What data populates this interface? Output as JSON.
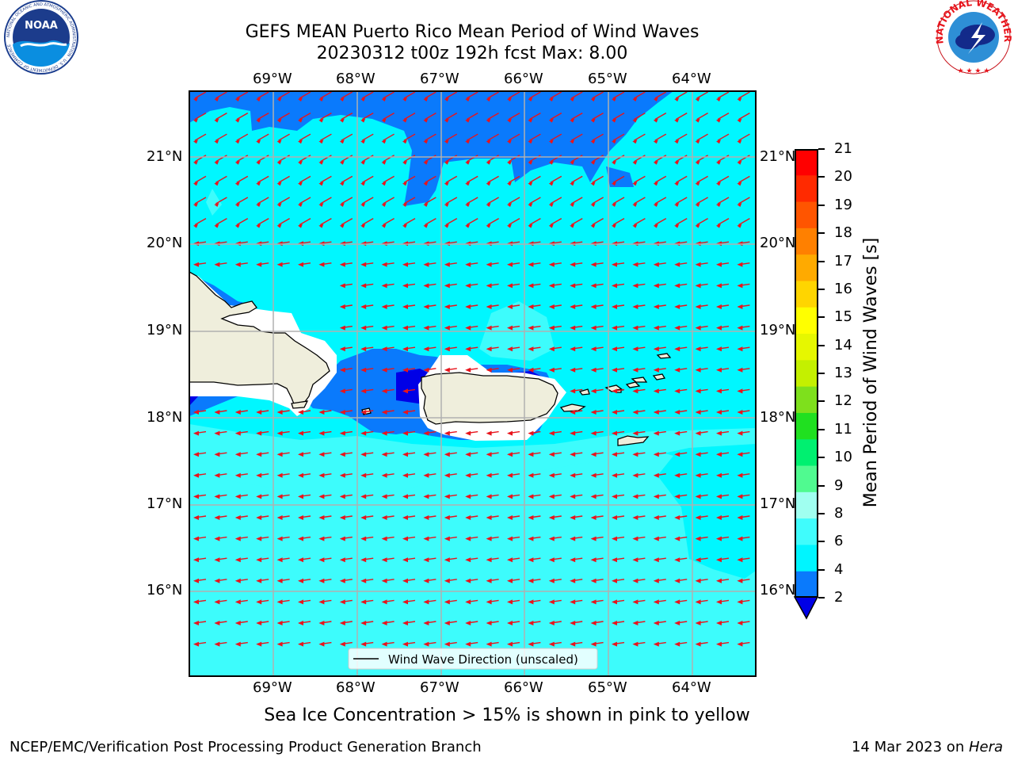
{
  "header": {
    "title_line1": "GEFS MEAN Puerto Rico Mean Period of Wind Waves",
    "title_line2": "20230312 t00z 192h fcst   Max: 8.00"
  },
  "logos": {
    "noaa_text": "NOAA",
    "noaa_ring": "NATIONAL OCEANIC AND ATMOSPHERIC ADMINISTRATION · U.S. DEPARTMENT OF COMMERCE",
    "nws_ring": "NATIONAL WEATHER SERVICE"
  },
  "map": {
    "lon_labels": [
      "69°W",
      "68°W",
      "67°W",
      "66°W",
      "65°W",
      "64°W"
    ],
    "lat_labels": [
      "21°N",
      "20°N",
      "19°N",
      "18°N",
      "17°N",
      "16°N"
    ],
    "legend_label": "Wind Wave Direction (unscaled)",
    "colors": {
      "land": "#efeedc",
      "shade_2_4": "#0a7afc",
      "shade_4_6": "#00f7ff",
      "shade_6_8": "#3dfcfc",
      "shade_below_2": "#0000e6",
      "arrow": "#e8141c",
      "grid": "#b0b0b0"
    }
  },
  "colorbar": {
    "label": "Mean Period of Wind Waves [s]",
    "ticks": [
      "21",
      "20",
      "19",
      "18",
      "17",
      "16",
      "15",
      "14",
      "13",
      "12",
      "11",
      "10",
      "9",
      "8",
      "6",
      "4",
      "2"
    ],
    "colors": [
      "#ff0000",
      "#ff2a00",
      "#ff5500",
      "#ff8000",
      "#ffaa00",
      "#ffd500",
      "#ffff00",
      "#e6f700",
      "#c4f000",
      "#7ee01c",
      "#20e020",
      "#00f070",
      "#50fa90",
      "#a0fff0",
      "#40fcfc",
      "#00f5ff",
      "#0a7afc"
    ],
    "under_color": "#0000e6"
  },
  "footer": {
    "sea_ice_note": "Sea Ice Concentration > 15% is shown in pink to yellow",
    "branch": "NCEP/EMC/Verification Post Processing Product Generation Branch",
    "date": "14 Mar 2023 on ",
    "machine": "Hera"
  }
}
